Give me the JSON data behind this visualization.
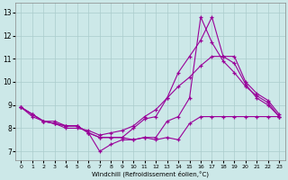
{
  "xlabel": "Windchill (Refroidissement éolien,°C)",
  "bg_color": "#cce8e8",
  "grid_color": "#aacccc",
  "line_color": "#990099",
  "x_ticks": [
    0,
    1,
    2,
    3,
    4,
    5,
    6,
    7,
    8,
    9,
    10,
    11,
    12,
    13,
    14,
    15,
    16,
    17,
    18,
    19,
    20,
    21,
    22,
    23
  ],
  "y_ticks": [
    7,
    8,
    9,
    10,
    11,
    12,
    13
  ],
  "xlim": [
    -0.5,
    23.5
  ],
  "ylim": [
    6.6,
    13.4
  ],
  "series": [
    {
      "x": [
        0,
        1,
        2,
        3,
        4,
        5,
        6,
        7,
        8,
        9,
        10,
        11,
        12,
        13,
        14,
        15,
        16,
        17,
        18,
        19,
        20,
        21,
        22,
        23
      ],
      "y": [
        8.9,
        8.6,
        8.3,
        8.3,
        8.1,
        8.1,
        7.8,
        7.6,
        7.6,
        7.6,
        8.0,
        8.4,
        8.5,
        9.3,
        10.4,
        11.1,
        11.8,
        12.8,
        11.1,
        11.1,
        10.0,
        9.5,
        9.2,
        8.6
      ]
    },
    {
      "x": [
        0,
        1,
        2,
        3,
        4,
        5,
        6,
        7,
        8,
        9,
        10,
        11,
        12,
        13,
        14,
        15,
        16,
        17,
        18,
        19,
        20,
        21,
        22,
        23
      ],
      "y": [
        8.9,
        8.6,
        8.3,
        8.2,
        8.1,
        8.1,
        7.8,
        7.6,
        7.6,
        7.6,
        7.5,
        7.6,
        7.6,
        8.3,
        8.5,
        9.3,
        12.8,
        11.7,
        10.9,
        10.4,
        9.8,
        9.4,
        9.1,
        8.5
      ]
    },
    {
      "x": [
        0,
        1,
        2,
        3,
        4,
        5,
        6,
        7,
        8,
        9,
        10,
        11,
        12,
        13,
        14,
        15,
        16,
        17,
        18,
        19,
        20,
        21,
        22,
        23
      ],
      "y": [
        8.9,
        8.5,
        8.3,
        8.2,
        8.0,
        8.0,
        7.9,
        7.7,
        7.8,
        7.9,
        8.1,
        8.5,
        8.8,
        9.3,
        9.8,
        10.2,
        10.7,
        11.1,
        11.1,
        10.8,
        9.9,
        9.3,
        9.0,
        8.5
      ]
    },
    {
      "x": [
        0,
        1,
        2,
        3,
        4,
        5,
        6,
        7,
        8,
        9,
        10,
        11,
        12,
        13,
        14,
        15,
        16,
        17,
        18,
        19,
        20,
        21,
        22,
        23
      ],
      "y": [
        8.9,
        8.6,
        8.3,
        8.2,
        8.1,
        8.1,
        7.8,
        7.0,
        7.3,
        7.5,
        7.5,
        7.6,
        7.5,
        7.6,
        7.5,
        8.2,
        8.5,
        8.5,
        8.5,
        8.5,
        8.5,
        8.5,
        8.5,
        8.5
      ]
    }
  ]
}
